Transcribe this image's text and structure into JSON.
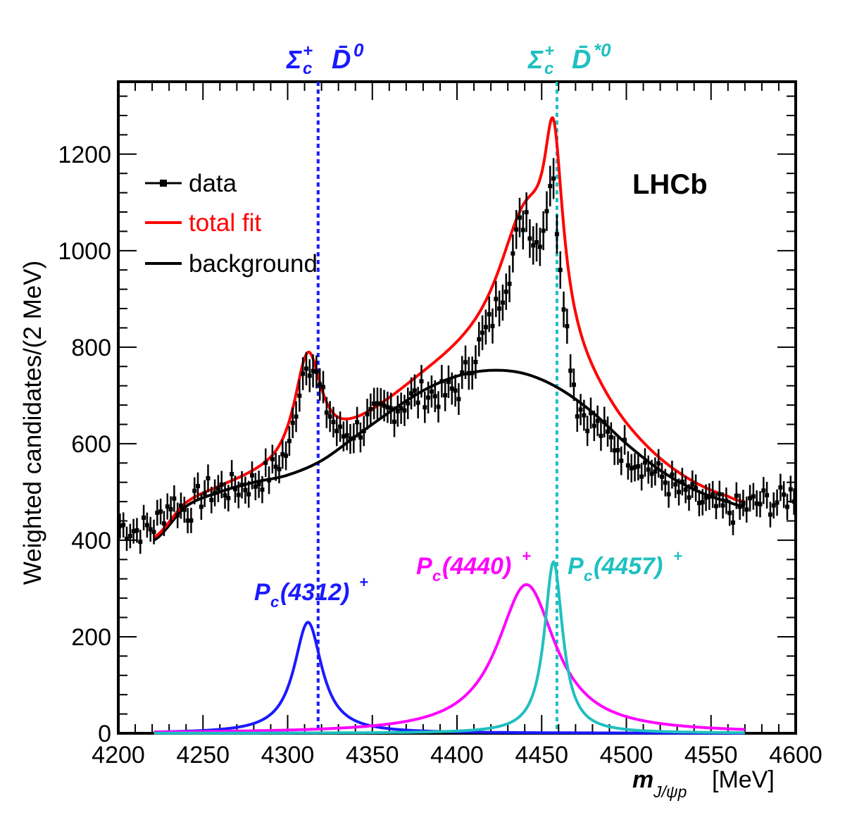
{
  "chart_data": {
    "type": "line",
    "experiment_label": "LHCb",
    "ylabel": "Weighted candidates/(2 MeV)",
    "xlabel": {
      "symbol": "m",
      "subscript": "J/ψp",
      "unit": "[MeV]"
    },
    "xlim": [
      4200,
      4600
    ],
    "ylim": [
      0,
      1350
    ],
    "x_ticks": [
      4200,
      4250,
      4300,
      4350,
      4400,
      4450,
      4500,
      4550,
      4600
    ],
    "y_ticks": [
      0,
      200,
      400,
      600,
      800,
      1000,
      1200
    ],
    "legend": [
      {
        "label": "data",
        "color": "#000000"
      },
      {
        "label": "total fit",
        "color": "#ff0000"
      },
      {
        "label": "background",
        "color": "#000000"
      }
    ],
    "thresholds": [
      {
        "name": "Σc+ D̄0",
        "base": "Σ",
        "sub": "c",
        "sup": "+",
        "particle": "D̄",
        "psup": "0",
        "x": 4318,
        "color": "#1a1aff"
      },
      {
        "name": "Σc+ D̄*0",
        "base": "Σ",
        "sub": "c",
        "sup": "+",
        "particle": "D̄",
        "psup": "*0",
        "x": 4459,
        "color": "#1fc0c0"
      }
    ],
    "peaks": [
      {
        "label": "Pc(4312)+",
        "main": "P",
        "sub": "c",
        "mass": "(4312)",
        "sup": "+",
        "center": 4312,
        "height": 230,
        "width": 10,
        "color": "#1a1aff"
      },
      {
        "label": "Pc(4440)+",
        "main": "P",
        "sub": "c",
        "mass": "(4440)",
        "sup": "+",
        "center": 4441,
        "height": 308,
        "width": 21,
        "color": "#ff00ff"
      },
      {
        "label": "Pc(4457)+",
        "main": "P",
        "sub": "c",
        "mass": "(4457)",
        "sup": "+",
        "center": 4457,
        "height": 355,
        "width": 6.6,
        "color": "#1fc0c0"
      }
    ],
    "fit_range": [
      4221,
      4570
    ],
    "background": {
      "x": [
        4221,
        4240,
        4260,
        4280,
        4300,
        4320,
        4340,
        4360,
        4380,
        4400,
        4420,
        4440,
        4460,
        4480,
        4500,
        4520,
        4540,
        4560,
        4570
      ],
      "values": [
        400,
        470,
        500,
        520,
        535,
        565,
        615,
        665,
        710,
        740,
        752,
        745,
        715,
        665,
        600,
        545,
        505,
        480,
        470
      ]
    },
    "data_points": {
      "x": [
        4201,
        4211,
        4221,
        4231,
        4241,
        4251,
        4261,
        4271,
        4281,
        4291,
        4301,
        4306,
        4311,
        4316,
        4321,
        4331,
        4341,
        4351,
        4361,
        4371,
        4381,
        4391,
        4401,
        4411,
        4421,
        4431,
        4436,
        4441,
        4446,
        4451,
        4456,
        4461,
        4466,
        4471,
        4481,
        4491,
        4501,
        4511,
        4521,
        4531,
        4541,
        4551,
        4561,
        4571,
        4581,
        4591,
        4599
      ],
      "values": [
        430,
        420,
        430,
        480,
        460,
        500,
        505,
        510,
        520,
        545,
        590,
        700,
        780,
        750,
        690,
        615,
        630,
        655,
        670,
        690,
        705,
        700,
        715,
        790,
        860,
        960,
        1040,
        1080,
        1010,
        1050,
        1170,
        980,
        800,
        680,
        640,
        605,
        580,
        555,
        530,
        500,
        485,
        470,
        460,
        470,
        480,
        480,
        500
      ]
    }
  }
}
